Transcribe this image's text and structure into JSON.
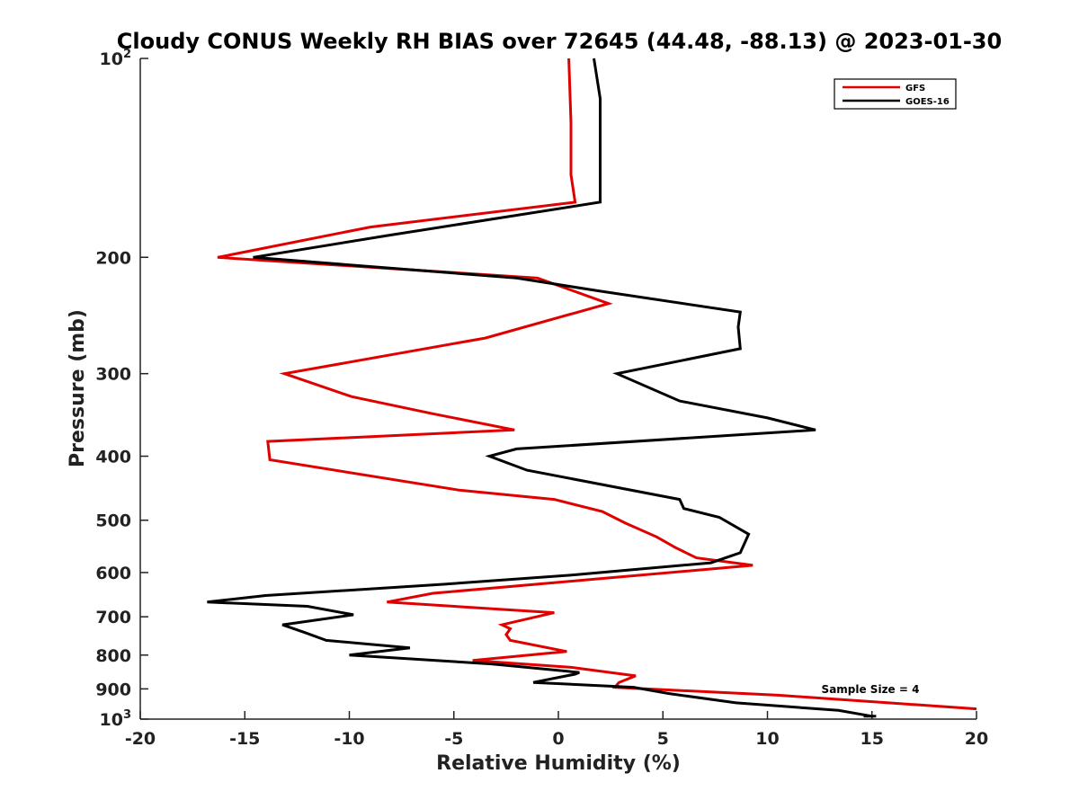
{
  "chart_data": {
    "type": "line",
    "title": "Cloudy CONUS Weekly RH BIAS over 72645 (44.48, -88.13) @ 2023-01-30",
    "xlabel": "Relative Humidity (%)",
    "ylabel": "Pressure (mb)",
    "xlim": [
      -20,
      20
    ],
    "ylim": [
      100,
      1000
    ],
    "y_scale": "log",
    "y_reversed": true,
    "grid": false,
    "x_ticks": [
      -20,
      -15,
      -10,
      -5,
      0,
      5,
      10,
      15,
      20
    ],
    "x_tick_labels": [
      "-20",
      "-15",
      "-10",
      "-5",
      "0",
      "5",
      "10",
      "15",
      "20"
    ],
    "y_ticks": [
      {
        "value": 100,
        "label": "10",
        "sup": "2"
      },
      {
        "value": 200,
        "label": "200",
        "sup": ""
      },
      {
        "value": 300,
        "label": "300",
        "sup": ""
      },
      {
        "value": 400,
        "label": "400",
        "sup": ""
      },
      {
        "value": 500,
        "label": "500",
        "sup": ""
      },
      {
        "value": 600,
        "label": "600",
        "sup": ""
      },
      {
        "value": 700,
        "label": "700",
        "sup": ""
      },
      {
        "value": 800,
        "label": "800",
        "sup": ""
      },
      {
        "value": 900,
        "label": "900",
        "sup": ""
      },
      {
        "value": 1000,
        "label": "10",
        "sup": "3"
      }
    ],
    "legend_position": "top-right",
    "series": [
      {
        "name": "GFS",
        "color": "#e00000",
        "points": [
          [
            0.5,
            100
          ],
          [
            0.6,
            125
          ],
          [
            0.6,
            150
          ],
          [
            0.8,
            165
          ],
          [
            -9,
            180
          ],
          [
            -16.3,
            200
          ],
          [
            -1,
            215
          ],
          [
            2.4,
            235
          ],
          [
            -3.5,
            265
          ],
          [
            -13.1,
            300
          ],
          [
            -9.9,
            325
          ],
          [
            -6,
            345
          ],
          [
            -2.1,
            365
          ],
          [
            -13.9,
            380
          ],
          [
            -13.8,
            405
          ],
          [
            -4.8,
            450
          ],
          [
            -0.2,
            465
          ],
          [
            2.1,
            485
          ],
          [
            3.2,
            505
          ],
          [
            4.7,
            530
          ],
          [
            5.6,
            550
          ],
          [
            6.6,
            570
          ],
          [
            9.3,
            585
          ],
          [
            1.5,
            615
          ],
          [
            -6,
            645
          ],
          [
            -8.2,
            665
          ],
          [
            -0.2,
            690
          ],
          [
            -2.7,
            720
          ],
          [
            -2.3,
            730
          ],
          [
            -2.5,
            745
          ],
          [
            -2.3,
            760
          ],
          [
            0.4,
            790
          ],
          [
            -4.1,
            815
          ],
          [
            0.6,
            835
          ],
          [
            3.7,
            860
          ],
          [
            2.9,
            880
          ],
          [
            2.7,
            895
          ],
          [
            10.5,
            920
          ],
          [
            20,
            965
          ]
        ]
      },
      {
        "name": "GOES-16",
        "color": "#000000",
        "points": [
          [
            1.7,
            100
          ],
          [
            2.0,
            115
          ],
          [
            2.0,
            135
          ],
          [
            2.0,
            165
          ],
          [
            -8,
            185
          ],
          [
            -14.6,
            200
          ],
          [
            -2,
            215
          ],
          [
            2.0,
            225
          ],
          [
            8.7,
            242
          ],
          [
            8.6,
            255
          ],
          [
            8.7,
            275
          ],
          [
            2.8,
            300
          ],
          [
            5.8,
            330
          ],
          [
            10,
            350
          ],
          [
            12.3,
            365
          ],
          [
            -2.0,
            390
          ],
          [
            -3.3,
            400
          ],
          [
            -1.5,
            420
          ],
          [
            5.8,
            465
          ],
          [
            6.0,
            480
          ],
          [
            7.7,
            495
          ],
          [
            9.1,
            525
          ],
          [
            8.7,
            560
          ],
          [
            7.3,
            580
          ],
          [
            0.7,
            605
          ],
          [
            -5.5,
            625
          ],
          [
            -14,
            650
          ],
          [
            -16.8,
            665
          ],
          [
            -12,
            675
          ],
          [
            -9.8,
            695
          ],
          [
            -13.2,
            720
          ],
          [
            -12.1,
            740
          ],
          [
            -11.1,
            760
          ],
          [
            -7.1,
            780
          ],
          [
            -10,
            800
          ],
          [
            -3.2,
            825
          ],
          [
            1.0,
            850
          ],
          [
            0.8,
            855
          ],
          [
            -1.2,
            880
          ],
          [
            3.6,
            895
          ],
          [
            5.3,
            915
          ],
          [
            8.5,
            945
          ],
          [
            13.4,
            970
          ],
          [
            15,
            990
          ],
          [
            14.6,
            990
          ],
          [
            15.2,
            990
          ]
        ]
      }
    ],
    "annotation": "Sample Size = 4"
  }
}
